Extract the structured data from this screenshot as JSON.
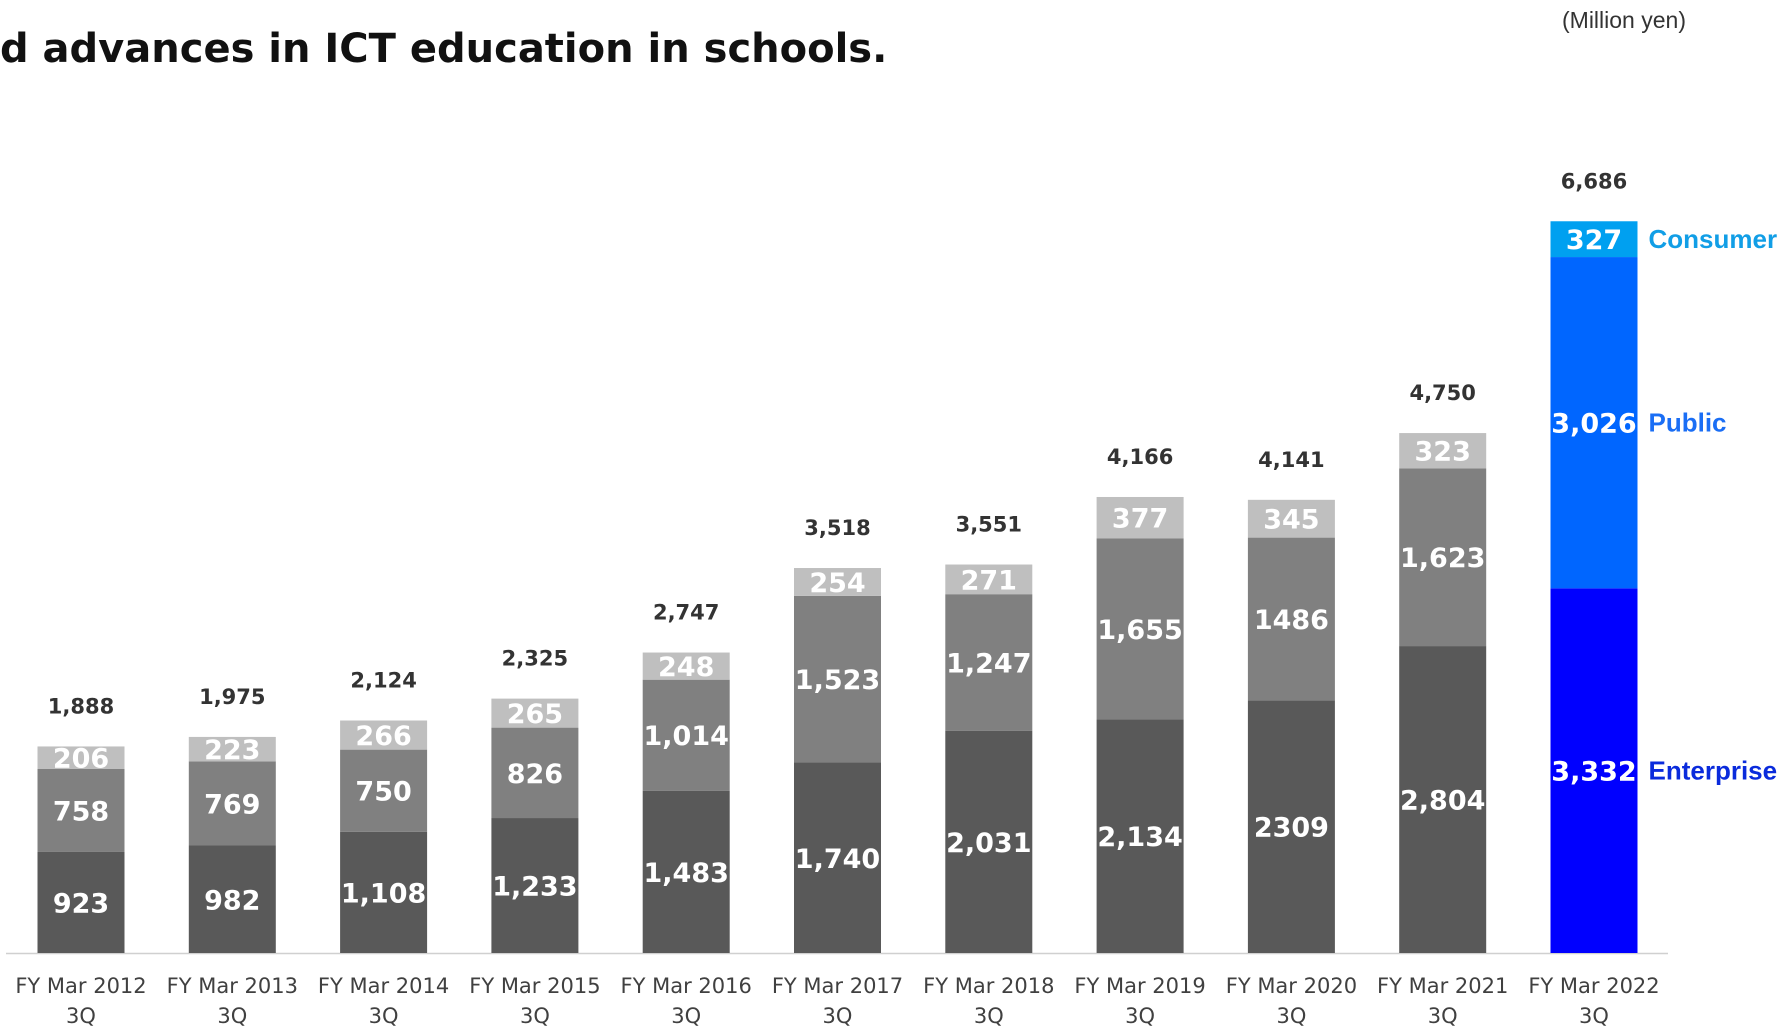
{
  "header": {
    "headline": "d advances in ICT education in schools.",
    "unit": "(Million yen)"
  },
  "chart_data": {
    "type": "bar",
    "stacked": true,
    "title": "",
    "xlabel": "",
    "ylabel": "",
    "ylim": [
      0,
      7400
    ],
    "grid": false,
    "legend": "right of last bar",
    "categories": [
      [
        "FY Mar 2012",
        "3Q"
      ],
      [
        "FY Mar 2013",
        "3Q"
      ],
      [
        "FY Mar 2014",
        "3Q"
      ],
      [
        "FY Mar 2015",
        "3Q"
      ],
      [
        "FY Mar 2016",
        "3Q"
      ],
      [
        "FY Mar 2017",
        "3Q"
      ],
      [
        "FY Mar 2018",
        "3Q"
      ],
      [
        "FY Mar 2019",
        "3Q"
      ],
      [
        "FY Mar 2020",
        "3Q"
      ],
      [
        "FY Mar 2021",
        "3Q"
      ],
      [
        "FY Mar 2022",
        "3Q"
      ]
    ],
    "series": [
      {
        "name": "Enterprise",
        "values": [
          923,
          982,
          1108,
          1233,
          1483,
          1740,
          2031,
          2134,
          2309,
          2804,
          3332
        ],
        "labels": [
          "923",
          "982",
          "1,108",
          "1,233",
          "1,483",
          "1,740",
          "2,031",
          "2,134",
          "2309",
          "2,804",
          "3,332"
        ],
        "color": "#595959",
        "highlight_color": "#0000ff",
        "legend_color": "#0a2bdc"
      },
      {
        "name": "Public",
        "values": [
          758,
          769,
          750,
          826,
          1014,
          1523,
          1247,
          1655,
          1486,
          1623,
          3026
        ],
        "labels": [
          "758",
          "769",
          "750",
          "826",
          "1,014",
          "1,523",
          "1,247",
          "1,655",
          "1486",
          "1,623",
          "3,026"
        ],
        "color": "#808080",
        "highlight_color": "#0066ff",
        "legend_color": "#1a6ef5"
      },
      {
        "name": "Consumer",
        "values": [
          206,
          223,
          266,
          265,
          248,
          254,
          271,
          377,
          345,
          323,
          327
        ],
        "labels": [
          "206",
          "223",
          "266",
          "265",
          "248",
          "254",
          "271",
          "377",
          "345",
          "323",
          "327"
        ],
        "color": "#bfbfbf",
        "highlight_color": "#00a0f0",
        "legend_color": "#119ee6"
      }
    ],
    "totals": [
      1888,
      1975,
      2124,
      2325,
      2747,
      3518,
      3551,
      4166,
      4141,
      4750,
      6686
    ],
    "total_labels": [
      "1,888",
      "1,975",
      "2,124",
      "2,325",
      "2,747",
      "3,518",
      "3,551",
      "4,166",
      "4,141",
      "4,750",
      "6,686"
    ],
    "highlight_index": 10
  }
}
